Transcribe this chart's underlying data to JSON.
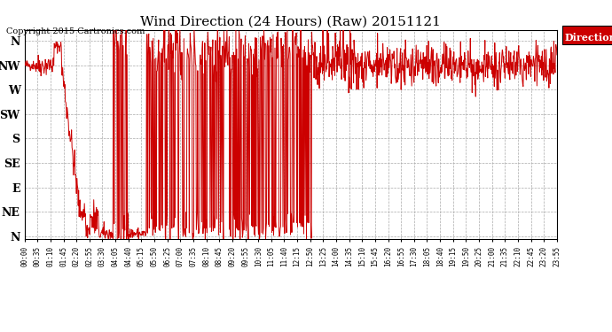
{
  "title": "Wind Direction (24 Hours) (Raw) 20151121",
  "copyright": "Copyright 2015 Cartronics.com",
  "legend_label": "Direction",
  "legend_bg": "#cc0000",
  "legend_text_color": "#ffffff",
  "line_color": "#cc0000",
  "bg_color": "#ffffff",
  "grid_color": "#aaaaaa",
  "ytick_labels": [
    "N",
    "NW",
    "W",
    "SW",
    "S",
    "SE",
    "E",
    "NE",
    "N"
  ],
  "ytick_values": [
    360,
    315,
    270,
    225,
    180,
    135,
    90,
    45,
    0
  ],
  "xtick_labels": [
    "00:00",
    "00:35",
    "01:10",
    "01:45",
    "02:20",
    "02:55",
    "03:30",
    "04:05",
    "04:40",
    "05:15",
    "05:50",
    "06:25",
    "07:00",
    "07:35",
    "08:10",
    "08:45",
    "09:20",
    "09:55",
    "10:30",
    "11:05",
    "11:40",
    "12:15",
    "12:50",
    "13:25",
    "14:00",
    "14:35",
    "15:10",
    "15:45",
    "16:20",
    "16:55",
    "17:30",
    "18:05",
    "18:40",
    "19:15",
    "19:50",
    "20:25",
    "21:00",
    "21:35",
    "22:10",
    "22:45",
    "23:20",
    "23:55"
  ],
  "ylim": [
    -5,
    380
  ]
}
